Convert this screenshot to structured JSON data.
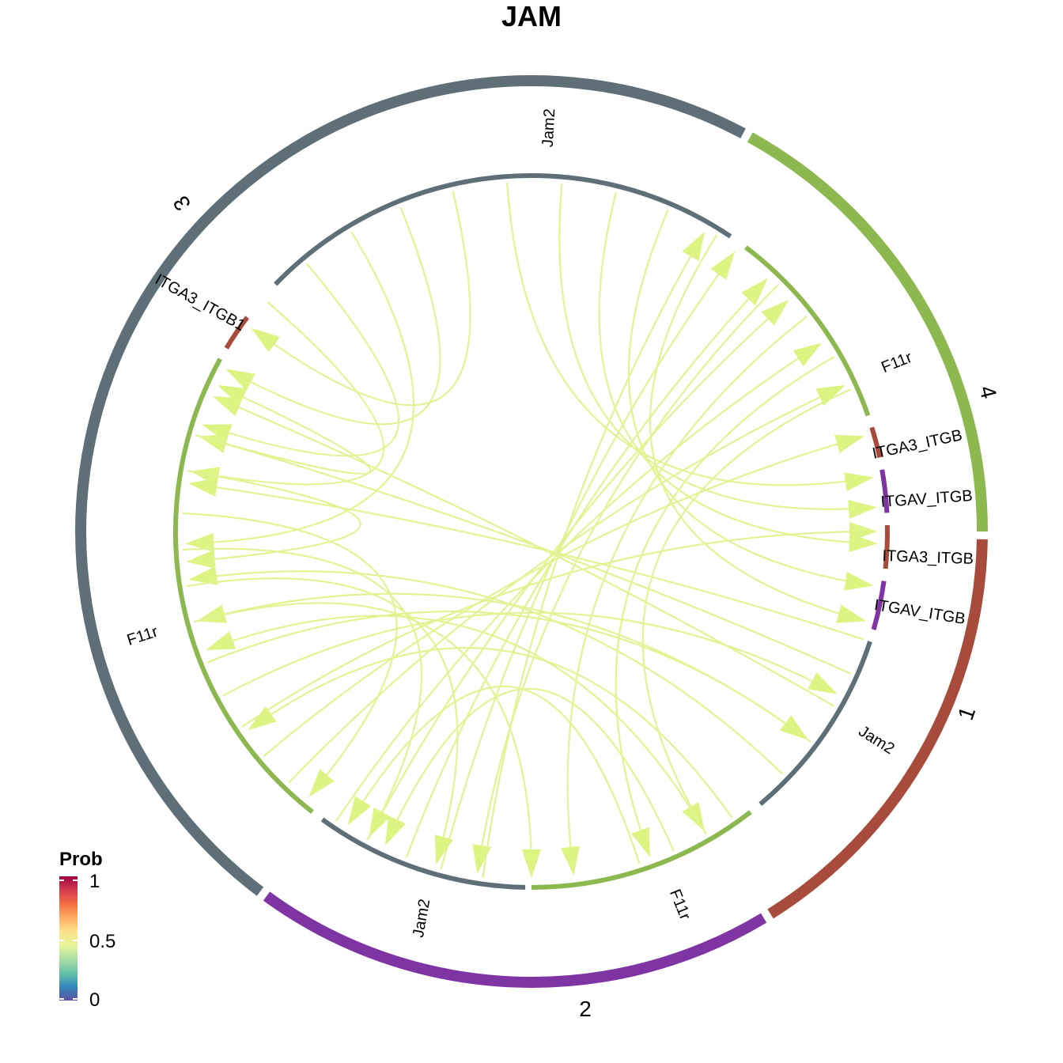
{
  "title": "JAM",
  "groups": [
    {
      "label": "1",
      "color": "#A84B3C"
    },
    {
      "label": "2",
      "color": "#7E35A3"
    },
    {
      "label": "3",
      "color": "#5F6F77"
    },
    {
      "label": "4",
      "color": "#8CB84F"
    }
  ],
  "sectors": [
    {
      "label": "Jam2",
      "group": "3",
      "color": "#5F6F77"
    },
    {
      "label": "F11r",
      "group": "4",
      "color": "#8CB84F"
    },
    {
      "label": "ITGA3_ITGB",
      "group": "4",
      "color": "#A84B3C"
    },
    {
      "label": "ITGAV_ITGB",
      "group": "4",
      "color": "#7E35A3"
    },
    {
      "label": "ITGA3_ITGB",
      "group": "1",
      "color": "#A84B3C"
    },
    {
      "label": "ITGAV_ITGB",
      "group": "1",
      "color": "#7E35A3"
    },
    {
      "label": "Jam2",
      "group": "1",
      "color": "#5F6F77"
    },
    {
      "label": "F11r",
      "group": "2",
      "color": "#8CB84F"
    },
    {
      "label": "Jam2",
      "group": "2",
      "color": "#5F6F77"
    },
    {
      "label": "F11r",
      "group": "3",
      "color": "#8CB84F"
    },
    {
      "label": "ITGA3_ITGB1",
      "group": "3",
      "color": "#A84B3C"
    }
  ],
  "legend": {
    "title": "Prob",
    "ticks": [
      "1",
      "0.5",
      "0"
    ],
    "colors": [
      "#5E4FA2",
      "#3288BD",
      "#66C2A5",
      "#ABDDA4",
      "#E6F598",
      "#FEE08B",
      "#FDAE61",
      "#F46D43",
      "#D53E4F",
      "#9E0142"
    ]
  },
  "link_color": "#E2F393",
  "chart_data": {
    "type": "chord",
    "title": "JAM",
    "value_legend": "Prob",
    "links": [
      {
        "from": "Jam2",
        "to": "F11r",
        "prob": 0.55
      },
      {
        "from": "Jam2",
        "to": "ITGA3_ITGB",
        "prob": 0.55
      },
      {
        "from": "Jam2",
        "to": "ITGAV_ITGB",
        "prob": 0.55
      },
      {
        "from": "F11r",
        "to": "Jam2",
        "prob": 0.55
      },
      {
        "from": "F11r",
        "to": "F11r",
        "prob": 0.55
      },
      {
        "from": "F11r",
        "to": "ITGA3_ITGB1",
        "prob": 0.55
      }
    ]
  }
}
